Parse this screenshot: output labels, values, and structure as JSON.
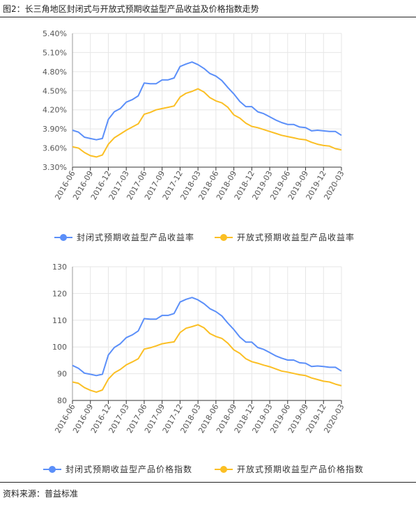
{
  "figure": {
    "title": "图2：长三角地区封闭式与开放式预期收益型产品收益及价格指数走势",
    "source": "资料来源：普益标准"
  },
  "chart_data": [
    {
      "type": "line",
      "x": [
        "2016-06",
        "2016-07",
        "2016-08",
        "2016-09",
        "2016-10",
        "2016-11",
        "2016-12",
        "2017-01",
        "2017-02",
        "2017-03",
        "2017-04",
        "2017-05",
        "2017-06",
        "2017-07",
        "2017-08",
        "2017-09",
        "2017-10",
        "2017-11",
        "2017-12",
        "2018-01",
        "2018-02",
        "2018-03",
        "2018-04",
        "2018-05",
        "2018-06",
        "2018-07",
        "2018-08",
        "2018-09",
        "2018-10",
        "2018-11",
        "2018-12",
        "2019-01",
        "2019-02",
        "2019-03",
        "2019-04",
        "2019-05",
        "2019-06",
        "2019-07",
        "2019-08",
        "2019-09",
        "2019-10",
        "2019-11",
        "2019-12",
        "2020-01",
        "2020-02",
        "2020-03"
      ],
      "xticks": [
        "2016-06",
        "2016-09",
        "2016-12",
        "2017-03",
        "2017-06",
        "2017-09",
        "2017-12",
        "2018-03",
        "2018-06",
        "2018-09",
        "2018-12",
        "2019-03",
        "2019-06",
        "2019-09",
        "2019-12",
        "2020-03"
      ],
      "yticks": [
        "3.30%",
        "3.60%",
        "3.90%",
        "4.20%",
        "4.50%",
        "4.80%",
        "5.10%",
        "5.40%"
      ],
      "ylim": [
        3.3,
        5.4
      ],
      "y_unit": "%",
      "grid": true,
      "legend_position": "bottom",
      "series": [
        {
          "name": "封闭式预期收益型产品收益率",
          "color": "#5b8ff9",
          "values": [
            3.88,
            3.85,
            3.77,
            3.75,
            3.73,
            3.75,
            4.05,
            4.17,
            4.22,
            4.32,
            4.36,
            4.42,
            4.62,
            4.61,
            4.61,
            4.67,
            4.67,
            4.7,
            4.88,
            4.92,
            4.95,
            4.91,
            4.85,
            4.77,
            4.73,
            4.66,
            4.55,
            4.45,
            4.33,
            4.25,
            4.25,
            4.17,
            4.14,
            4.09,
            4.04,
            4.0,
            3.97,
            3.97,
            3.93,
            3.92,
            3.87,
            3.88,
            3.87,
            3.86,
            3.86,
            3.8
          ]
        },
        {
          "name": "开放式预期收益型产品收益率",
          "color": "#fbbf24",
          "values": [
            3.62,
            3.6,
            3.53,
            3.48,
            3.46,
            3.49,
            3.66,
            3.76,
            3.82,
            3.88,
            3.93,
            3.98,
            4.13,
            4.16,
            4.2,
            4.22,
            4.24,
            4.26,
            4.4,
            4.46,
            4.49,
            4.53,
            4.48,
            4.39,
            4.34,
            4.31,
            4.24,
            4.12,
            4.07,
            3.99,
            3.94,
            3.92,
            3.89,
            3.86,
            3.83,
            3.8,
            3.78,
            3.76,
            3.74,
            3.73,
            3.69,
            3.66,
            3.64,
            3.63,
            3.59,
            3.57
          ]
        }
      ]
    },
    {
      "type": "line",
      "x": [
        "2016-06",
        "2016-07",
        "2016-08",
        "2016-09",
        "2016-10",
        "2016-11",
        "2016-12",
        "2017-01",
        "2017-02",
        "2017-03",
        "2017-04",
        "2017-05",
        "2017-06",
        "2017-07",
        "2017-08",
        "2017-09",
        "2017-10",
        "2017-11",
        "2017-12",
        "2018-01",
        "2018-02",
        "2018-03",
        "2018-04",
        "2018-05",
        "2018-06",
        "2018-07",
        "2018-08",
        "2018-09",
        "2018-10",
        "2018-11",
        "2018-12",
        "2019-01",
        "2019-02",
        "2019-03",
        "2019-04",
        "2019-05",
        "2019-06",
        "2019-07",
        "2019-08",
        "2019-09",
        "2019-10",
        "2019-11",
        "2019-12",
        "2020-01",
        "2020-02",
        "2020-03"
      ],
      "xticks": [
        "2016-06",
        "2016-09",
        "2016-12",
        "2017-03",
        "2017-06",
        "2017-09",
        "2017-12",
        "2018-03",
        "2018-06",
        "2018-09",
        "2018-12",
        "2019-03",
        "2019-06",
        "2019-09",
        "2019-12",
        "2020-03"
      ],
      "yticks": [
        "80",
        "90",
        "100",
        "110",
        "120",
        "130"
      ],
      "ylim": [
        80,
        130
      ],
      "y_unit": "",
      "grid": true,
      "legend_position": "bottom",
      "series": [
        {
          "name": "封闭式预期收益型产品价格指数",
          "color": "#5b8ff9",
          "values": [
            93.1,
            92.0,
            90.2,
            89.8,
            89.3,
            89.8,
            97.0,
            99.8,
            101.2,
            103.5,
            104.5,
            106.0,
            110.6,
            110.4,
            110.4,
            111.8,
            111.8,
            112.5,
            116.8,
            117.8,
            118.5,
            117.6,
            116.2,
            114.3,
            113.2,
            111.6,
            108.9,
            106.5,
            103.7,
            101.8,
            101.8,
            99.8,
            99.1,
            97.9,
            96.7,
            95.8,
            95.1,
            95.1,
            94.1,
            93.9,
            92.7,
            92.9,
            92.7,
            92.4,
            92.4,
            91.0
          ]
        },
        {
          "name": "开放式预期收益型产品价格指数",
          "color": "#fbbf24",
          "values": [
            86.9,
            86.4,
            84.8,
            83.8,
            83.1,
            83.9,
            88.0,
            90.3,
            91.6,
            93.3,
            94.4,
            95.6,
            99.2,
            99.7,
            100.4,
            101.2,
            101.6,
            101.9,
            105.4,
            107.0,
            107.6,
            108.3,
            107.2,
            105.0,
            103.9,
            103.2,
            101.4,
            98.9,
            97.6,
            95.6,
            94.5,
            93.9,
            93.2,
            92.6,
            91.8,
            91.0,
            90.6,
            90.1,
            89.6,
            89.3,
            88.4,
            87.8,
            87.2,
            86.9,
            86.1,
            85.5
          ]
        }
      ]
    }
  ]
}
